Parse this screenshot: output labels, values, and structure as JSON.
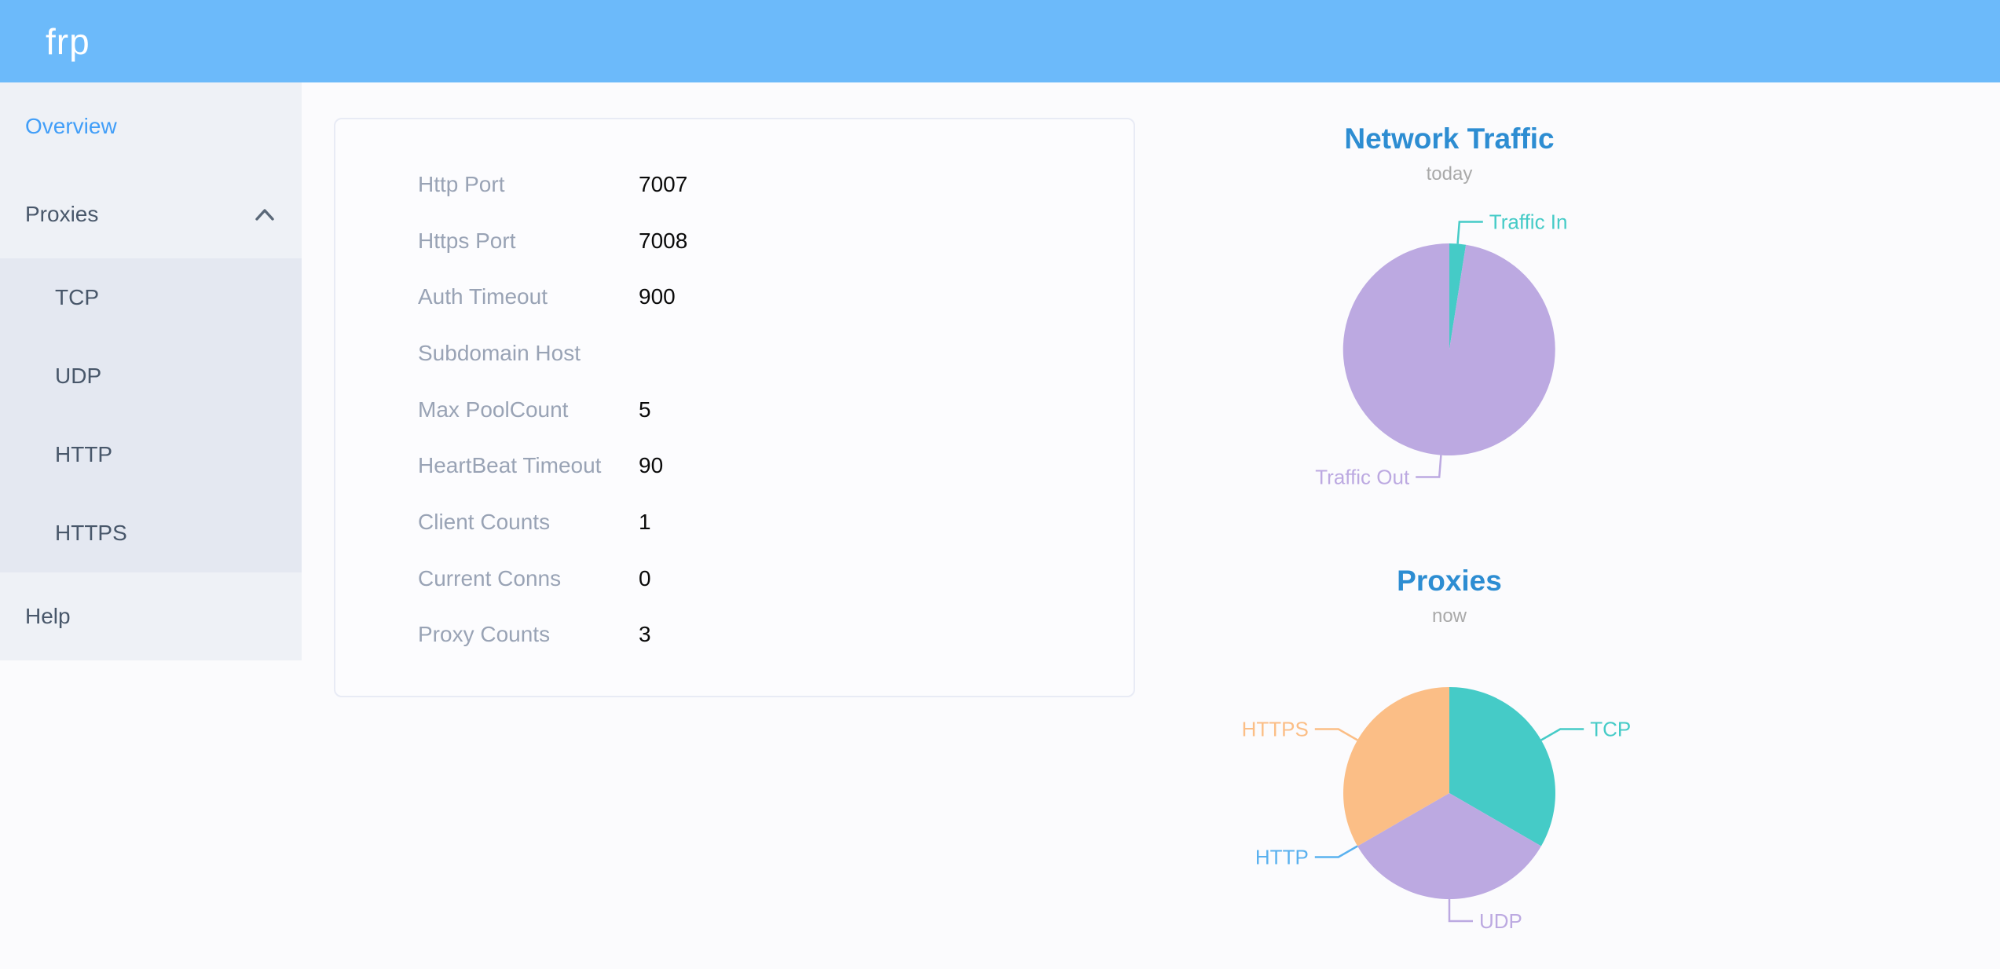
{
  "header": {
    "logo": "frp"
  },
  "sidebar": {
    "items": [
      {
        "label": "Overview",
        "active": true
      },
      {
        "label": "Proxies",
        "expanded": true
      },
      {
        "label": "TCP"
      },
      {
        "label": "UDP"
      },
      {
        "label": "HTTP"
      },
      {
        "label": "HTTPS"
      },
      {
        "label": "Help"
      }
    ]
  },
  "server_info": {
    "rows": [
      {
        "label": "Http Port",
        "value": "7007"
      },
      {
        "label": "Https Port",
        "value": "7008"
      },
      {
        "label": "Auth Timeout",
        "value": "900"
      },
      {
        "label": "Subdomain Host",
        "value": ""
      },
      {
        "label": "Max PoolCount",
        "value": "5"
      },
      {
        "label": "HeartBeat Timeout",
        "value": "90"
      },
      {
        "label": "Client Counts",
        "value": "1"
      },
      {
        "label": "Current Conns",
        "value": "0"
      },
      {
        "label": "Proxy Counts",
        "value": "3"
      }
    ]
  },
  "chart_data": [
    {
      "type": "pie",
      "title": "Network Traffic",
      "subtitle": "today",
      "labels": [
        "Traffic In",
        "Traffic Out"
      ],
      "values_percent": [
        2.5,
        97.5
      ],
      "colors": [
        "#45CBC7",
        "#BCA9E1"
      ],
      "legend_position": "none",
      "label_style": "outside-with-leader-lines"
    },
    {
      "type": "pie",
      "title": "Proxies",
      "subtitle": "now",
      "labels": [
        "TCP",
        "UDP",
        "HTTP",
        "HTTPS"
      ],
      "values": [
        1,
        1,
        0,
        1
      ],
      "colors": [
        "#45CBC7",
        "#BCA9E1",
        "#5AB1EF",
        "#FBBE86"
      ],
      "legend_position": "none",
      "label_style": "outside-with-leader-lines"
    }
  ],
  "theme": {
    "header_bg": "#6CBAFA",
    "sidebar_bg": "#EEF1F6",
    "submenu_bg": "#E4E8F1",
    "page_bg": "#FBFBFD",
    "card_border": "#E8EBF5",
    "menu_text": "#48576A",
    "menu_active": "#419EF8",
    "label_text": "#99A3B5",
    "value_text": "#0A0A0A",
    "chart_title": "#2D8DD2",
    "chart_subtitle": "#A9A9A9"
  }
}
